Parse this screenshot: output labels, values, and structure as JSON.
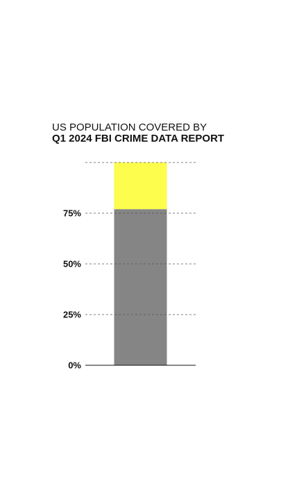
{
  "chart_data": {
    "type": "stacked-bar",
    "title": "US POPULATION COVERED BY",
    "subtitle": "Q1 2024 FBI CRIME DATA REPORT",
    "categories": [
      null
    ],
    "series": [
      {
        "color": "#858585",
        "values": [
          77
        ]
      },
      {
        "color": "#fdfd4d",
        "values": [
          23
        ]
      }
    ],
    "ylim": [
      0,
      100
    ],
    "yticks": [
      {
        "value": 0,
        "label": "0%"
      },
      {
        "value": 25,
        "label": "25%"
      },
      {
        "value": 50,
        "label": "50%"
      },
      {
        "value": 75,
        "label": "75%"
      }
    ],
    "grid": true
  }
}
